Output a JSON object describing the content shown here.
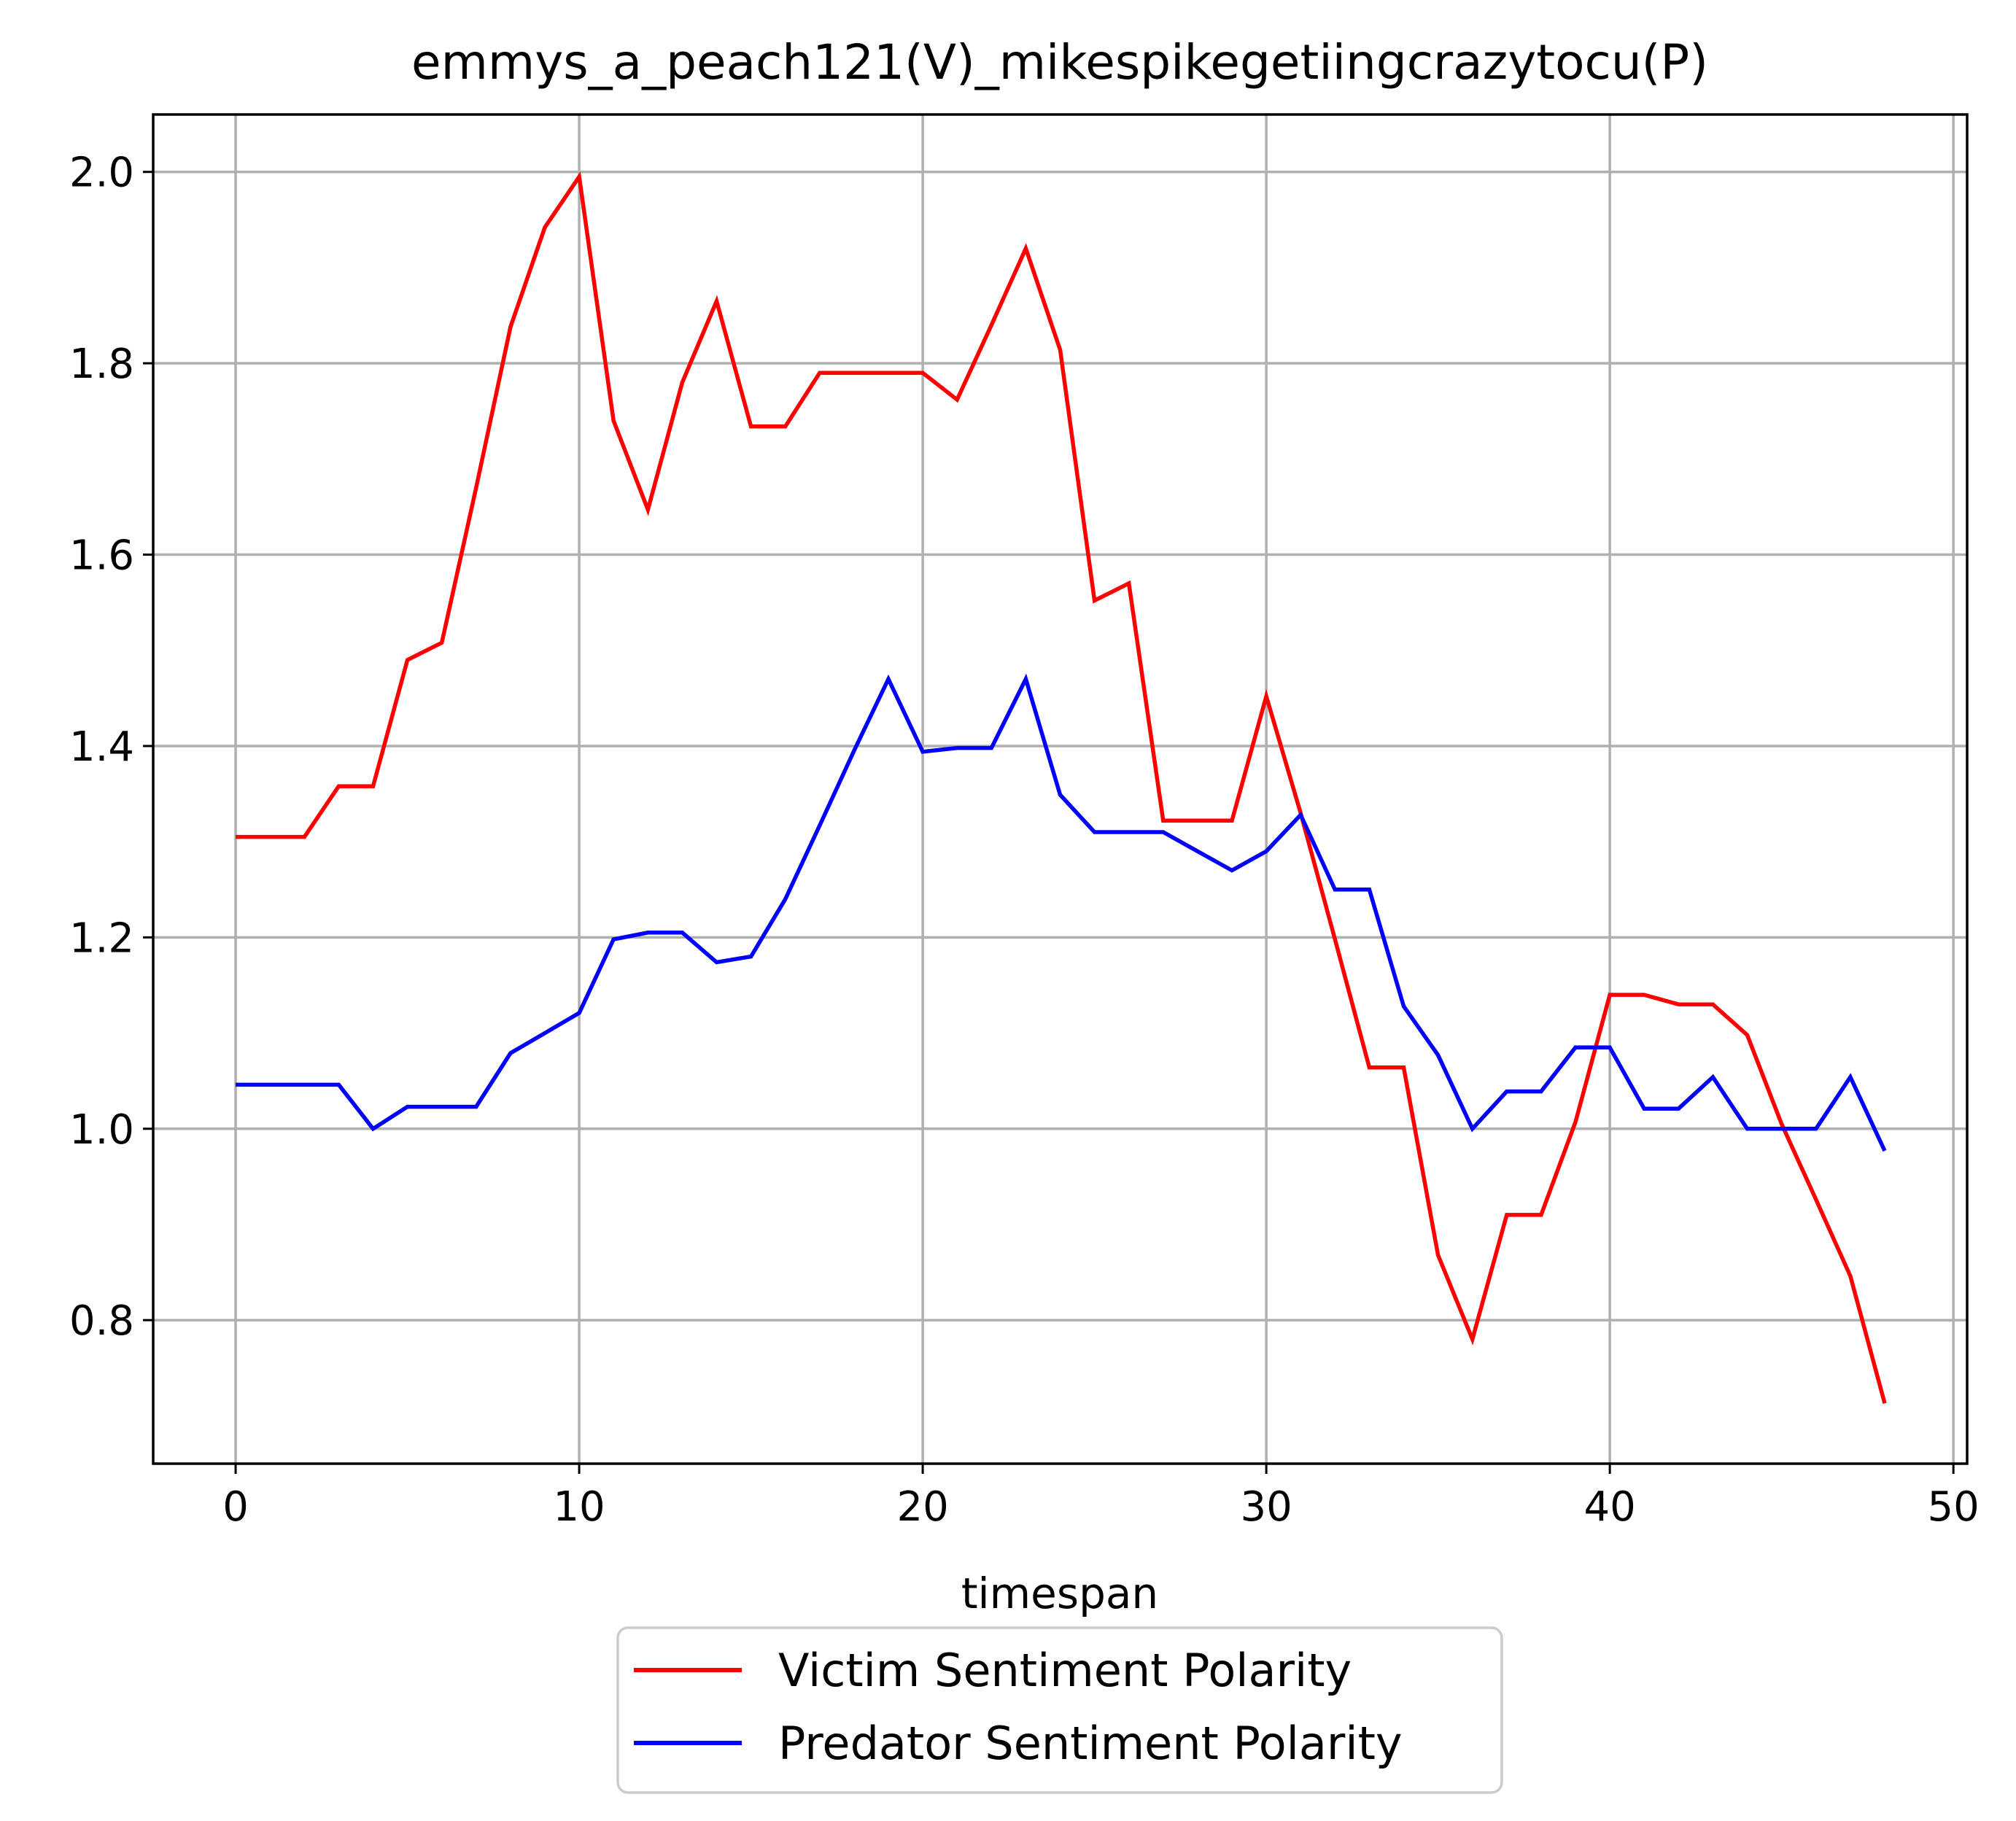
{
  "chart_data": {
    "type": "line",
    "title": "emmys_a_peach121(V)_mikespikegetiingcrazytocu(P)",
    "xlabel": "timespan",
    "ylabel": "",
    "xlim": [
      -2.4,
      50.4
    ],
    "ylim": [
      0.65,
      2.06
    ],
    "x_ticks": [
      0,
      10,
      20,
      30,
      40,
      50
    ],
    "y_ticks": [
      0.8,
      1.0,
      1.2,
      1.4,
      1.6,
      1.8,
      2.0
    ],
    "grid": true,
    "legend_position": "below-center",
    "x": [
      0,
      1,
      2,
      3,
      4,
      5,
      6,
      7,
      8,
      9,
      10,
      11,
      12,
      13,
      14,
      15,
      16,
      17,
      18,
      19,
      20,
      21,
      22,
      23,
      24,
      25,
      26,
      27,
      28,
      29,
      30,
      31,
      32,
      33,
      34,
      35,
      36,
      37,
      38,
      39,
      40,
      41,
      42,
      43,
      44,
      45,
      46,
      47,
      48
    ],
    "series": [
      {
        "name": "Victim Sentiment Polarity",
        "color": "#ff0000",
        "values": [
          1.305,
          1.305,
          1.305,
          1.358,
          1.358,
          1.49,
          1.508,
          1.67,
          1.838,
          1.942,
          1.995,
          1.74,
          1.647,
          1.78,
          1.865,
          1.734,
          1.734,
          1.79,
          1.79,
          1.79,
          1.79,
          1.762,
          1.84,
          1.92,
          1.814,
          1.552,
          1.57,
          1.322,
          1.322,
          1.322,
          1.452,
          1.33,
          1.198,
          1.064,
          1.064,
          0.868,
          0.78,
          0.91,
          0.91,
          1.007,
          1.14,
          1.14,
          1.13,
          1.13,
          1.098,
          1.005,
          0.926,
          0.846,
          0.713
        ]
      },
      {
        "name": "Predator Sentiment Polarity",
        "color": "#0000ff",
        "values": [
          1.046,
          1.046,
          1.046,
          1.046,
          1.0,
          1.023,
          1.023,
          1.023,
          1.079,
          1.1,
          1.121,
          1.198,
          1.205,
          1.205,
          1.174,
          1.18,
          1.24,
          1.317,
          1.395,
          1.47,
          1.394,
          1.398,
          1.398,
          1.47,
          1.349,
          1.31,
          1.31,
          1.31,
          1.29,
          1.27,
          1.29,
          1.328,
          1.25,
          1.25,
          1.128,
          1.077,
          1.0,
          1.039,
          1.039,
          1.085,
          1.085,
          1.021,
          1.021,
          1.054,
          1.0,
          1.0,
          1.0,
          1.054,
          0.977
        ]
      }
    ]
  }
}
